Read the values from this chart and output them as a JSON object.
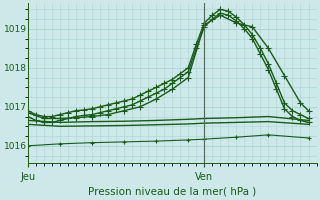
{
  "title": "Pression niveau de la mer( hPa )",
  "bg_color": "#cce8e8",
  "grid_color": "#aad4d4",
  "line_color": "#1a5c1a",
  "vline_color": "#556655",
  "ylim": [
    1015.55,
    1019.65
  ],
  "yticks": [
    1016,
    1017,
    1018,
    1019
  ],
  "xlim": [
    0,
    36
  ],
  "x_jeu": 0,
  "x_ven": 22,
  "series": [
    {
      "x": [
        0,
        1,
        2,
        3,
        4,
        5,
        6,
        7,
        8,
        9,
        10,
        11,
        12,
        13,
        14,
        15,
        16,
        17,
        18,
        19,
        20,
        21,
        22,
        23,
        24,
        25,
        26,
        27,
        28,
        29,
        30,
        31,
        32,
        33,
        34,
        35
      ],
      "y": [
        1016.9,
        1016.8,
        1016.75,
        1016.75,
        1016.8,
        1016.85,
        1016.9,
        1016.92,
        1016.95,
        1017.0,
        1017.05,
        1017.1,
        1017.15,
        1017.2,
        1017.3,
        1017.4,
        1017.5,
        1017.6,
        1017.7,
        1017.85,
        1018.0,
        1018.6,
        1019.15,
        1019.35,
        1019.5,
        1019.45,
        1019.3,
        1019.1,
        1018.85,
        1018.5,
        1018.1,
        1017.6,
        1017.1,
        1016.9,
        1016.8,
        1016.7
      ],
      "marker": "+",
      "lw": 1.0,
      "ms": 4
    },
    {
      "x": [
        0,
        1,
        2,
        3,
        4,
        5,
        6,
        7,
        8,
        9,
        10,
        11,
        12,
        13,
        14,
        15,
        16,
        17,
        18,
        19,
        20,
        21,
        22,
        23,
        24,
        25,
        26,
        27,
        28,
        29,
        30,
        31,
        32,
        33,
        34,
        35
      ],
      "y": [
        1016.75,
        1016.65,
        1016.6,
        1016.6,
        1016.65,
        1016.7,
        1016.75,
        1016.78,
        1016.8,
        1016.85,
        1016.9,
        1016.95,
        1017.0,
        1017.05,
        1017.15,
        1017.25,
        1017.35,
        1017.45,
        1017.6,
        1017.75,
        1017.9,
        1018.5,
        1019.05,
        1019.25,
        1019.4,
        1019.35,
        1019.2,
        1019.0,
        1018.75,
        1018.35,
        1017.95,
        1017.45,
        1016.95,
        1016.75,
        1016.65,
        1016.6
      ],
      "marker": "+",
      "lw": 1.0,
      "ms": 4
    },
    {
      "x": [
        0,
        2,
        4,
        6,
        8,
        10,
        12,
        14,
        16,
        18,
        20,
        22,
        24,
        26,
        28,
        30,
        32,
        34,
        35
      ],
      "y": [
        1016.85,
        1016.7,
        1016.7,
        1016.72,
        1016.75,
        1016.8,
        1016.9,
        1017.0,
        1017.2,
        1017.45,
        1017.75,
        1019.1,
        1019.35,
        1019.15,
        1019.05,
        1018.5,
        1017.8,
        1017.1,
        1016.9
      ],
      "marker": "+",
      "lw": 1.0,
      "ms": 4
    },
    {
      "x": [
        0,
        4,
        8,
        12,
        16,
        20,
        22,
        26,
        30,
        35
      ],
      "y": [
        1016.65,
        1016.6,
        1016.62,
        1016.63,
        1016.65,
        1016.68,
        1016.7,
        1016.72,
        1016.75,
        1016.65
      ],
      "marker": null,
      "lw": 1.0,
      "ms": 0
    },
    {
      "x": [
        0,
        4,
        8,
        12,
        16,
        20,
        22,
        26,
        30,
        35
      ],
      "y": [
        1016.55,
        1016.5,
        1016.51,
        1016.52,
        1016.54,
        1016.56,
        1016.58,
        1016.6,
        1016.62,
        1016.55
      ],
      "marker": null,
      "lw": 1.0,
      "ms": 0
    },
    {
      "x": [
        0,
        4,
        8,
        12,
        16,
        20,
        22,
        26,
        30,
        35
      ],
      "y": [
        1016.0,
        1016.05,
        1016.08,
        1016.1,
        1016.12,
        1016.15,
        1016.17,
        1016.22,
        1016.28,
        1016.2
      ],
      "marker": "+",
      "lw": 0.8,
      "ms": 3
    }
  ]
}
